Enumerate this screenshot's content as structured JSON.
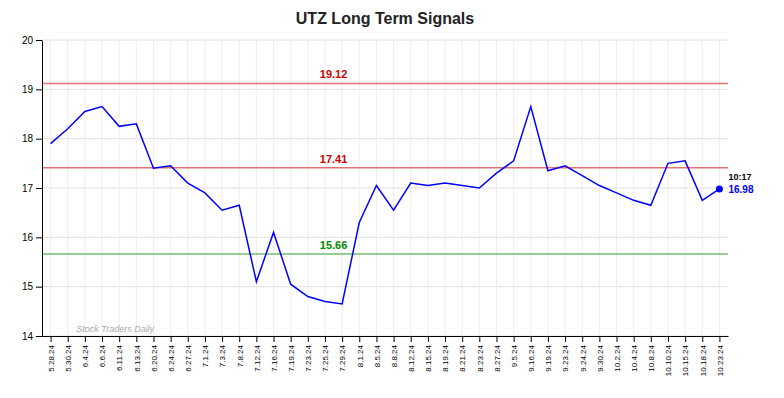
{
  "chart_data": {
    "type": "line",
    "title": "UTZ Long Term Signals",
    "categories": [
      "5.28.24",
      "5.30.24",
      "6.4.24",
      "6.6.24",
      "6.11.24",
      "6.13.24",
      "6.20.24",
      "6.24.24",
      "6.27.24",
      "7.1.24",
      "7.3.24",
      "7.8.24",
      "7.12.24",
      "7.16.24",
      "7.19.24",
      "7.23.24",
      "7.25.24",
      "7.29.24",
      "8.1.24",
      "8.5.24",
      "8.8.24",
      "8.12.24",
      "8.15.24",
      "8.19.24",
      "8.21.24",
      "8.23.24",
      "8.27.24",
      "9.5.24",
      "9.16.24",
      "9.19.24",
      "9.23.24",
      "9.24.24",
      "9.30.24",
      "10.2.24",
      "10.4.24",
      "10.8.24",
      "10.10.24",
      "10.15.24",
      "10.18.24",
      "10.23.24"
    ],
    "values": [
      17.9,
      18.2,
      18.55,
      18.65,
      18.25,
      18.3,
      17.4,
      17.45,
      17.1,
      16.9,
      16.55,
      16.65,
      15.1,
      16.1,
      15.05,
      14.8,
      14.7,
      14.65,
      16.3,
      17.05,
      16.55,
      17.1,
      17.05,
      17.1,
      17.05,
      17.0,
      17.3,
      17.55,
      18.65,
      17.35,
      17.45,
      17.25,
      17.05,
      16.9,
      16.75,
      16.65,
      17.5,
      17.55,
      16.75,
      16.98
    ],
    "color": "blue",
    "ylim": [
      14,
      20
    ],
    "yticks": [
      14,
      15,
      16,
      17,
      18,
      19,
      20
    ],
    "grid": true,
    "reference_lines": [
      {
        "value": 19.12,
        "label": "19.12",
        "color": "#cc0000"
      },
      {
        "value": 17.41,
        "label": "17.41",
        "color": "#cc0000"
      },
      {
        "value": 15.66,
        "label": "15.66",
        "color": "#008800"
      }
    ],
    "annotations": [
      {
        "text": "10:17",
        "color": "black"
      },
      {
        "text": "16.98",
        "value": 16.98,
        "color": "blue"
      }
    ],
    "watermark": "Stock Traders Daily"
  }
}
